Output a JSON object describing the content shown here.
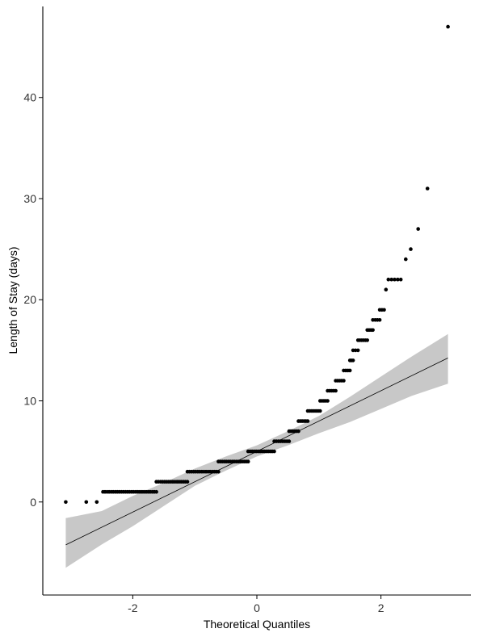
{
  "chart_data": {
    "type": "scatter",
    "title": "",
    "xlabel": "Theoretical Quantiles",
    "ylabel": "Length of Stay (days)",
    "xlim": [
      -3.45,
      3.45
    ],
    "ylim": [
      -9.2,
      49.0
    ],
    "x_ticks": [
      -2,
      0,
      2
    ],
    "y_ticks": [
      0,
      10,
      20,
      30,
      40
    ],
    "x_tick_labels": [
      "-2",
      "0",
      "2"
    ],
    "y_tick_labels": [
      "0",
      "10",
      "20",
      "30",
      "40"
    ],
    "grid": false,
    "legend": "none",
    "point_color": "#000000",
    "band_color": "#c8c8c8",
    "line_color": "#000000",
    "reference_line": {
      "slope": 3.0,
      "intercept": 5.0,
      "x_range": [
        -3.08,
        3.08
      ]
    },
    "confidence_band": [
      {
        "x": -3.08,
        "lower": -6.5,
        "upper": -1.6
      },
      {
        "x": -2.5,
        "lower": -4.2,
        "upper": -0.9
      },
      {
        "x": -2.0,
        "lower": -2.4,
        "upper": 0.6
      },
      {
        "x": -1.5,
        "lower": -0.4,
        "upper": 1.9
      },
      {
        "x": -1.0,
        "lower": 1.6,
        "upper": 3.3
      },
      {
        "x": -0.5,
        "lower": 3.1,
        "upper": 4.5
      },
      {
        "x": 0.0,
        "lower": 4.5,
        "upper": 5.6
      },
      {
        "x": 0.5,
        "lower": 5.6,
        "upper": 7.0
      },
      {
        "x": 1.0,
        "lower": 6.8,
        "upper": 8.5
      },
      {
        "x": 1.5,
        "lower": 7.9,
        "upper": 10.4
      },
      {
        "x": 2.0,
        "lower": 9.2,
        "upper": 12.4
      },
      {
        "x": 2.5,
        "lower": 10.5,
        "upper": 14.4
      },
      {
        "x": 3.08,
        "lower": 11.7,
        "upper": 16.6
      }
    ],
    "point_groups": [
      {
        "y": 0,
        "x": [
          -3.08,
          -2.75,
          -2.58
        ]
      },
      {
        "y": 1,
        "x_range": [
          -2.48,
          -1.62
        ]
      },
      {
        "y": 2,
        "x_range": [
          -1.62,
          -1.12
        ]
      },
      {
        "y": 3,
        "x_range": [
          -1.12,
          -0.62
        ]
      },
      {
        "y": 4,
        "x_range": [
          -0.62,
          -0.14
        ]
      },
      {
        "y": 5,
        "x_range": [
          -0.14,
          0.28
        ]
      },
      {
        "y": 6,
        "x_range": [
          0.28,
          0.52
        ]
      },
      {
        "y": 7,
        "x_range": [
          0.52,
          0.67
        ]
      },
      {
        "y": 8,
        "x_range": [
          0.67,
          0.82
        ]
      },
      {
        "y": 9,
        "x_range": [
          0.82,
          1.02
        ]
      },
      {
        "y": 10,
        "x_range": [
          1.02,
          1.14
        ]
      },
      {
        "y": 11,
        "x_range": [
          1.14,
          1.27
        ]
      },
      {
        "y": 12,
        "x_range": [
          1.27,
          1.4
        ]
      },
      {
        "y": 13,
        "x_range": [
          1.4,
          1.5
        ]
      },
      {
        "y": 14,
        "x_range": [
          1.5,
          1.55
        ]
      },
      {
        "y": 15,
        "x_range": [
          1.55,
          1.63
        ]
      },
      {
        "y": 16,
        "x_range": [
          1.63,
          1.78
        ]
      },
      {
        "y": 17,
        "x_range": [
          1.78,
          1.87
        ]
      },
      {
        "y": 18,
        "x_range": [
          1.87,
          1.98
        ]
      },
      {
        "y": 19,
        "x_range": [
          1.98,
          2.05
        ]
      },
      {
        "y": 21,
        "x": [
          2.08
        ]
      },
      {
        "y": 22,
        "x": [
          2.12,
          2.17,
          2.22,
          2.27,
          2.32
        ]
      },
      {
        "y": 24,
        "x": [
          2.4
        ]
      },
      {
        "y": 25,
        "x": [
          2.48
        ]
      },
      {
        "y": 27,
        "x": [
          2.6
        ]
      },
      {
        "y": 31,
        "x": [
          2.75
        ]
      },
      {
        "y": 47,
        "x": [
          3.08
        ]
      }
    ]
  }
}
